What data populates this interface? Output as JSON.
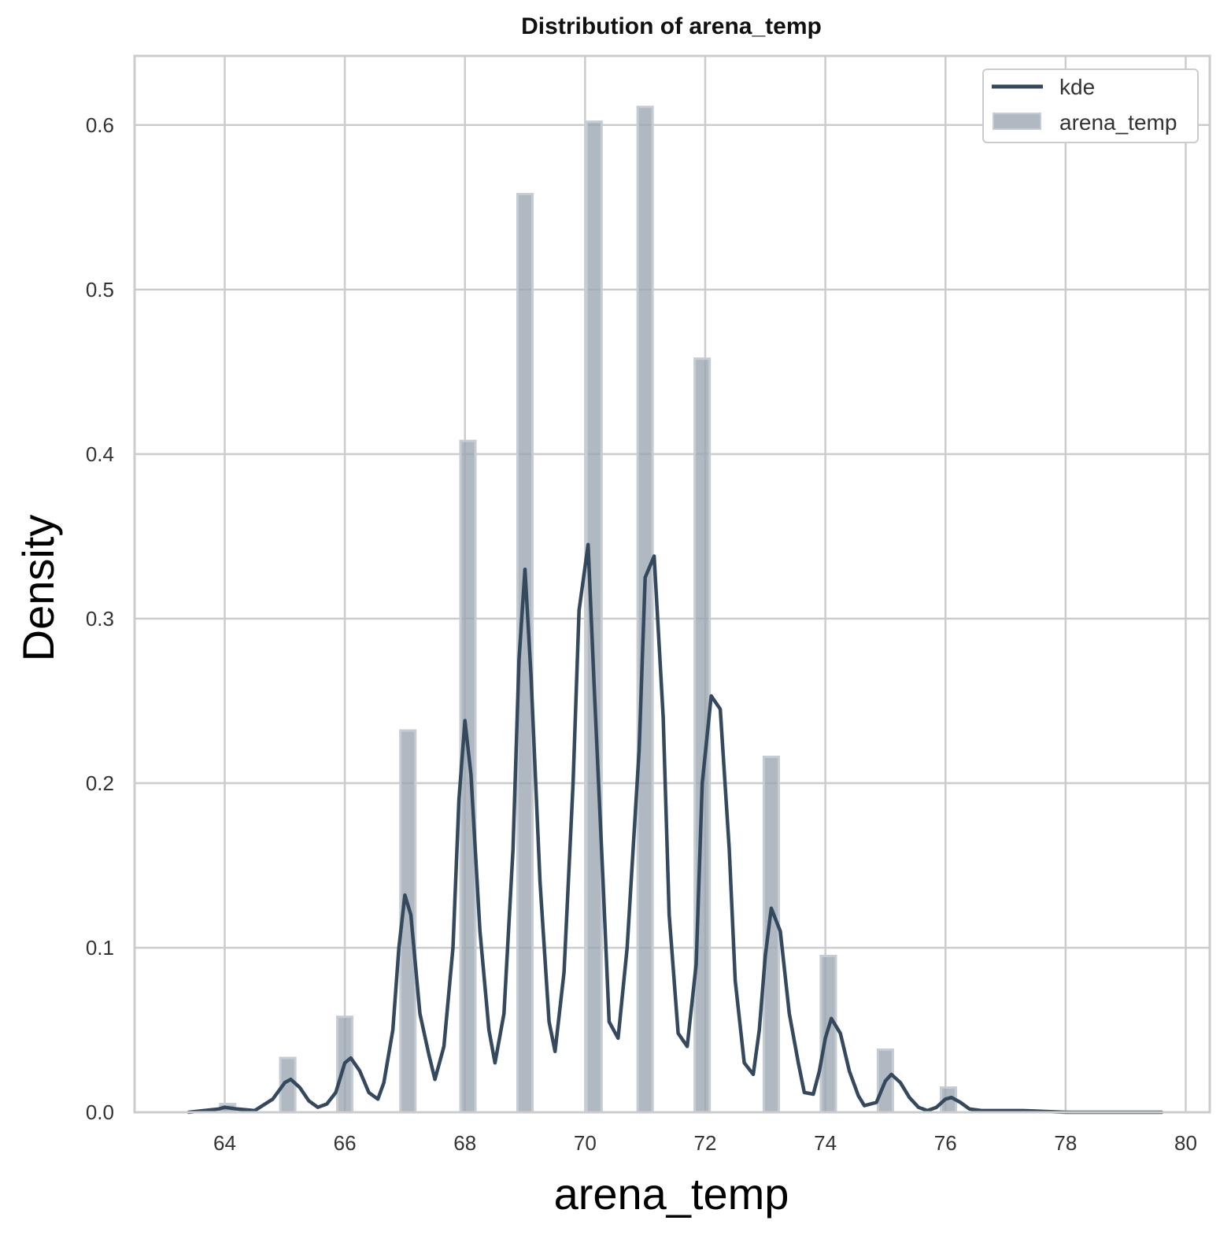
{
  "chart_data": {
    "type": "bar",
    "title": "Distribution of arena_temp",
    "xlabel": "arena_temp",
    "ylabel": "Density",
    "xlim": [
      62.5,
      80.4
    ],
    "ylim": [
      0,
      0.642
    ],
    "x_ticks": [
      "64",
      "66",
      "68",
      "70",
      "72",
      "74",
      "76",
      "78",
      "80"
    ],
    "y_ticks": [
      "0.0",
      "0.1",
      "0.2",
      "0.3",
      "0.4",
      "0.5",
      "0.6"
    ],
    "grid": true,
    "legend_position": "top-right",
    "legend": [
      "kde",
      "arena_temp"
    ],
    "series": [
      {
        "name": "arena_temp",
        "kind": "histogram",
        "color": "#9aa5b1",
        "bins": [
          {
            "x": 64.05,
            "value": 0.005
          },
          {
            "x": 65.05,
            "value": 0.033
          },
          {
            "x": 66.0,
            "value": 0.058
          },
          {
            "x": 67.05,
            "value": 0.232
          },
          {
            "x": 68.05,
            "value": 0.408
          },
          {
            "x": 69.0,
            "value": 0.558
          },
          {
            "x": 70.15,
            "value": 0.602
          },
          {
            "x": 71.0,
            "value": 0.611
          },
          {
            "x": 71.95,
            "value": 0.458
          },
          {
            "x": 73.1,
            "value": 0.216
          },
          {
            "x": 74.05,
            "value": 0.095
          },
          {
            "x": 75.0,
            "value": 0.038
          },
          {
            "x": 76.05,
            "value": 0.015
          }
        ]
      },
      {
        "name": "kde",
        "kind": "line",
        "color": "#34495e",
        "x": [
          63.4,
          63.9,
          64.0,
          64.2,
          64.5,
          64.8,
          65.0,
          65.1,
          65.25,
          65.4,
          65.55,
          65.7,
          65.85,
          66.0,
          66.1,
          66.25,
          66.4,
          66.55,
          66.65,
          66.8,
          66.9,
          67.0,
          67.1,
          67.25,
          67.4,
          67.5,
          67.65,
          67.8,
          67.9,
          68.0,
          68.1,
          68.25,
          68.4,
          68.5,
          68.65,
          68.8,
          68.9,
          69.0,
          69.1,
          69.25,
          69.4,
          69.5,
          69.65,
          69.8,
          69.9,
          70.05,
          70.15,
          70.3,
          70.4,
          70.55,
          70.7,
          70.9,
          71.0,
          71.15,
          71.3,
          71.4,
          71.55,
          71.7,
          71.85,
          71.95,
          72.1,
          72.25,
          72.4,
          72.5,
          72.65,
          72.8,
          72.9,
          73.0,
          73.1,
          73.25,
          73.4,
          73.55,
          73.65,
          73.8,
          73.9,
          74.0,
          74.1,
          74.25,
          74.4,
          74.55,
          74.65,
          74.85,
          75.0,
          75.1,
          75.25,
          75.4,
          75.55,
          75.7,
          75.85,
          76.0,
          76.1,
          76.25,
          76.4,
          76.6,
          76.9,
          77.3,
          78.0,
          79.0,
          79.6
        ],
        "y": [
          0.0,
          0.002,
          0.003,
          0.002,
          0.001,
          0.008,
          0.018,
          0.02,
          0.015,
          0.007,
          0.003,
          0.005,
          0.012,
          0.03,
          0.033,
          0.025,
          0.012,
          0.008,
          0.018,
          0.05,
          0.1,
          0.132,
          0.12,
          0.06,
          0.035,
          0.02,
          0.04,
          0.1,
          0.19,
          0.238,
          0.205,
          0.11,
          0.05,
          0.03,
          0.06,
          0.16,
          0.275,
          0.33,
          0.265,
          0.14,
          0.055,
          0.037,
          0.085,
          0.2,
          0.305,
          0.345,
          0.26,
          0.14,
          0.055,
          0.045,
          0.1,
          0.22,
          0.325,
          0.338,
          0.24,
          0.12,
          0.048,
          0.04,
          0.09,
          0.2,
          0.253,
          0.245,
          0.16,
          0.08,
          0.03,
          0.023,
          0.05,
          0.095,
          0.124,
          0.11,
          0.06,
          0.03,
          0.012,
          0.011,
          0.025,
          0.045,
          0.057,
          0.048,
          0.025,
          0.01,
          0.004,
          0.006,
          0.019,
          0.023,
          0.018,
          0.009,
          0.003,
          0.001,
          0.003,
          0.008,
          0.009,
          0.006,
          0.002,
          0.001,
          0.001,
          0.001,
          0.0,
          0.0,
          0.0
        ]
      }
    ]
  }
}
